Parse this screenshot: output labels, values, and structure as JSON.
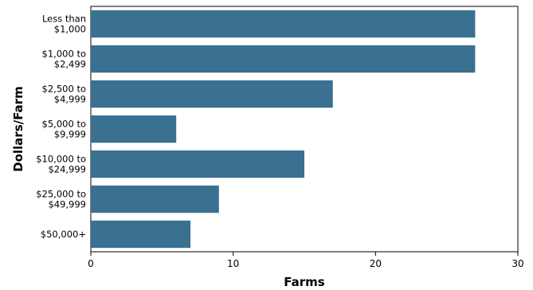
{
  "chart_data": {
    "type": "bar",
    "orientation": "horizontal",
    "categories": [
      [
        "Less than",
        "$1,000"
      ],
      [
        "$1,000 to",
        "$2,499"
      ],
      [
        "$2,500 to",
        "$4,999"
      ],
      [
        "$5,000 to",
        "$9,999"
      ],
      [
        "$10,000 to",
        "$24,999"
      ],
      [
        "$25,000 to",
        "$49,999"
      ],
      [
        "$50,000+"
      ]
    ],
    "values": [
      27,
      27,
      17,
      6,
      15,
      9,
      7
    ],
    "xlabel": "Farms",
    "ylabel": "Dollars/Farm",
    "xlim": [
      0,
      30
    ],
    "xticks": [
      "0",
      "10",
      "20",
      "30"
    ],
    "grid": false,
    "bar_color": "#3a7090"
  }
}
